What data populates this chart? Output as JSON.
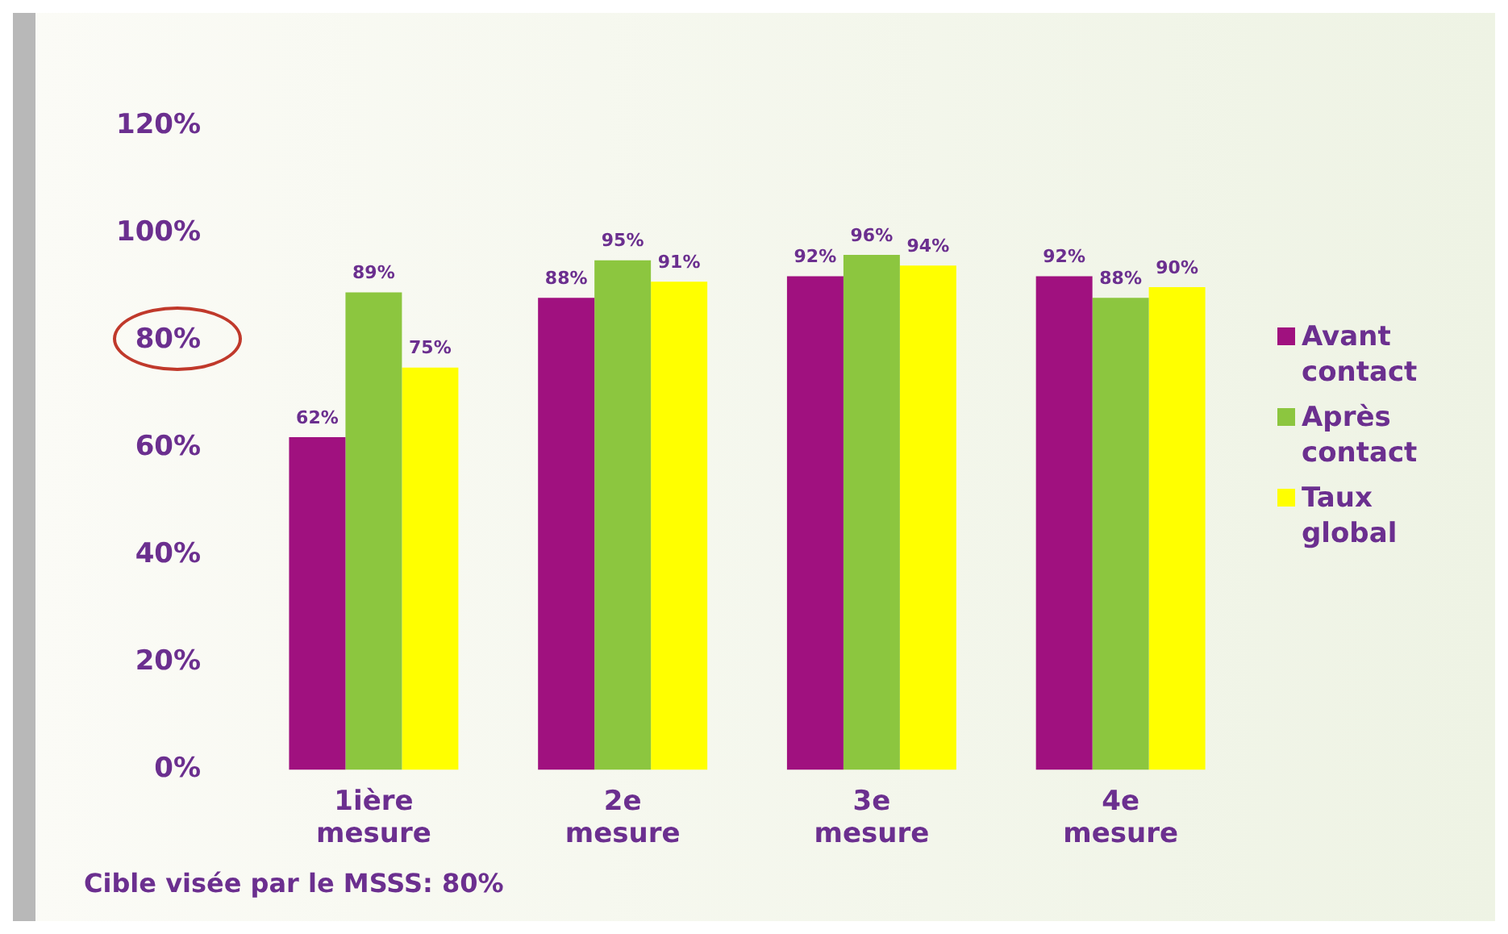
{
  "chart_data": {
    "type": "bar",
    "categories": [
      "1ière mesure",
      "2e mesure",
      "3e mesure",
      "4e mesure"
    ],
    "series": [
      {
        "name": "Avant contact",
        "color": "#a0117f",
        "values": [
          62,
          88,
          92,
          92
        ],
        "value_labels": [
          "62%",
          "88%",
          "92%",
          "92%"
        ]
      },
      {
        "name": "Après contact",
        "color": "#8cc63f",
        "values": [
          89,
          95,
          96,
          88
        ],
        "value_labels": [
          "89%",
          "95%",
          "96%",
          "88%"
        ]
      },
      {
        "name": "Taux global",
        "color": "#ffff00",
        "values": [
          75,
          91,
          94,
          90
        ],
        "value_labels": [
          "75%",
          "91%",
          "94%",
          "90%"
        ]
      }
    ],
    "ylim": [
      0,
      120
    ],
    "yticks": [
      {
        "value": 0,
        "label": "0%"
      },
      {
        "value": 20,
        "label": "20%"
      },
      {
        "value": 40,
        "label": "40%"
      },
      {
        "value": 60,
        "label": "60%"
      },
      {
        "value": 80,
        "label": "80%"
      },
      {
        "value": 100,
        "label": "100%"
      },
      {
        "value": 120,
        "label": "120%"
      }
    ],
    "grid": false,
    "legend": "right",
    "annotations": [
      "Cible visée par le MSSS: 80%"
    ]
  }
}
